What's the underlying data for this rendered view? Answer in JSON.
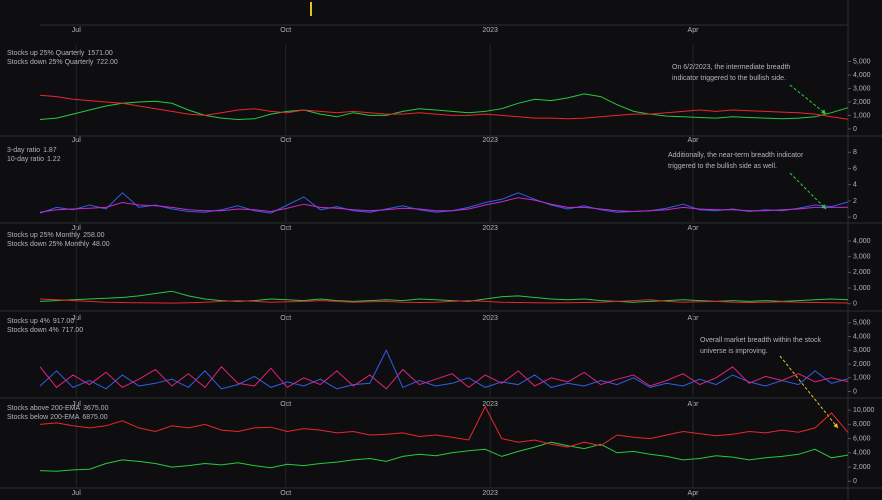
{
  "x_axis": {
    "xlim": [
      0,
      49
    ],
    "xticks": [
      {
        "value": 2.2,
        "label": "Jul"
      },
      {
        "value": 14.9,
        "label": "Oct"
      },
      {
        "value": 27.3,
        "label": "2023"
      },
      {
        "value": 39.6,
        "label": "Apr"
      }
    ]
  },
  "chart_data": [
    {
      "type": "line",
      "ylim": [
        -450,
        6000
      ],
      "yticks": [
        0,
        {
          "value": 1000,
          "label": "1,000"
        },
        {
          "value": 2000,
          "label": "2,000"
        },
        {
          "value": 3000,
          "label": "3,000"
        },
        {
          "value": 4000,
          "label": "4,000"
        },
        {
          "value": 5000,
          "label": "5,000"
        }
      ],
      "series": [
        {
          "name": "Stocks up 25% Quarterly",
          "color": "#27c93f",
          "last": {
            "value": 1571,
            "label": "1571.00"
          },
          "values": [
            700,
            800,
            1100,
            1400,
            1700,
            1900,
            2000,
            2050,
            1900,
            1400,
            1000,
            800,
            700,
            750,
            1100,
            1300,
            1400,
            1100,
            900,
            1200,
            1000,
            1000,
            1300,
            1500,
            1400,
            1300,
            1200,
            1300,
            1500,
            1900,
            2200,
            2100,
            2300,
            2600,
            2400,
            1800,
            1300,
            1100,
            950,
            900,
            850,
            800,
            900,
            850,
            800,
            750,
            800,
            900,
            1200,
            1571
          ]
        },
        {
          "name": "Stocks down 25% Quarterly",
          "color": "#e8262b",
          "last": {
            "value": 722,
            "label": "722.00"
          },
          "values": [
            2500,
            2400,
            2200,
            2100,
            2000,
            1900,
            1700,
            1500,
            1300,
            1100,
            1000,
            1200,
            1400,
            1500,
            1300,
            1200,
            1400,
            1300,
            1200,
            1300,
            1200,
            1100,
            1100,
            1200,
            1100,
            1000,
            1000,
            1100,
            1000,
            900,
            800,
            800,
            750,
            800,
            900,
            1000,
            1100,
            1100,
            1200,
            1300,
            1400,
            1300,
            1400,
            1350,
            1300,
            1250,
            1200,
            1100,
            900,
            722
          ]
        }
      ],
      "annotation": {
        "color": "#2ecc40",
        "lines": [
          "On 6/2/2023, the intermediate breadth",
          "indicator triggered to the bullish side."
        ]
      }
    },
    {
      "type": "line",
      "ylim": [
        -0.6,
        8.9
      ],
      "yticks": [
        0,
        2,
        4,
        6,
        8
      ],
      "series": [
        {
          "name": "3-day ratio",
          "color": "#2f5fe8",
          "last": {
            "value": 1.87,
            "label": "1.87"
          },
          "values": [
            0.5,
            1.2,
            0.9,
            1.5,
            1.0,
            3.0,
            1.2,
            1.5,
            1.0,
            0.7,
            0.6,
            0.9,
            1.4,
            0.8,
            0.5,
            1.5,
            2.5,
            0.9,
            1.3,
            0.8,
            0.6,
            1.0,
            1.4,
            0.9,
            0.6,
            0.8,
            1.2,
            1.8,
            2.2,
            3.0,
            2.2,
            1.5,
            1.0,
            1.4,
            0.9,
            0.6,
            0.7,
            0.8,
            1.1,
            1.6,
            0.9,
            0.8,
            1.0,
            0.7,
            0.9,
            0.8,
            1.1,
            1.5,
            1.3,
            1.87
          ]
        },
        {
          "name": "10-day ratio",
          "color": "#c42bd0",
          "last": {
            "value": 1.22,
            "label": "1.22"
          },
          "values": [
            0.6,
            0.9,
            1.0,
            1.1,
            1.2,
            1.8,
            1.5,
            1.4,
            1.2,
            0.9,
            0.8,
            0.8,
            1.0,
            0.9,
            0.7,
            1.1,
            1.6,
            1.2,
            1.1,
            0.9,
            0.8,
            0.9,
            1.1,
            1.0,
            0.8,
            0.8,
            1.0,
            1.5,
            1.9,
            2.4,
            2.1,
            1.6,
            1.2,
            1.2,
            1.0,
            0.8,
            0.7,
            0.8,
            0.9,
            1.2,
            1.0,
            0.9,
            0.9,
            0.8,
            0.8,
            0.9,
            1.0,
            1.2,
            1.2,
            1.22
          ]
        }
      ],
      "annotation": {
        "color": "#2ecc40",
        "lines": [
          "Additionally, the near-term breadth indicator",
          "triggered to the bullish side as well."
        ]
      }
    },
    {
      "type": "line",
      "ylim": [
        -400,
        4700
      ],
      "yticks": [
        0,
        {
          "value": 1000,
          "label": "1,000"
        },
        {
          "value": 2000,
          "label": "2,000"
        },
        {
          "value": 3000,
          "label": "3,000"
        },
        {
          "value": 4000,
          "label": "4,000"
        }
      ],
      "series": [
        {
          "name": "Stocks up 25% Monthly",
          "color": "#27c93f",
          "last": {
            "value": 258,
            "label": "258.00"
          },
          "values": [
            150,
            200,
            250,
            300,
            350,
            400,
            500,
            650,
            800,
            500,
            300,
            200,
            150,
            200,
            300,
            250,
            200,
            300,
            200,
            150,
            200,
            250,
            200,
            300,
            250,
            200,
            150,
            300,
            450,
            500,
            400,
            300,
            250,
            300,
            200,
            150,
            100,
            150,
            200,
            250,
            200,
            150,
            200,
            150,
            200,
            150,
            200,
            250,
            300,
            258
          ]
        },
        {
          "name": "Stocks down 25% Monthly",
          "color": "#e8262b",
          "last": {
            "value": 48,
            "label": "48.00"
          },
          "values": [
            300,
            250,
            200,
            150,
            100,
            80,
            60,
            50,
            40,
            60,
            100,
            150,
            200,
            150,
            100,
            120,
            150,
            200,
            150,
            100,
            120,
            150,
            100,
            80,
            100,
            150,
            200,
            150,
            100,
            80,
            60,
            50,
            60,
            80,
            100,
            150,
            200,
            250,
            150,
            100,
            120,
            150,
            100,
            80,
            100,
            120,
            100,
            80,
            60,
            48
          ]
        }
      ]
    },
    {
      "type": "line",
      "ylim": [
        -400,
        5500
      ],
      "yticks": [
        0,
        {
          "value": 1000,
          "label": "1,000"
        },
        {
          "value": 2000,
          "label": "2,000"
        },
        {
          "value": 3000,
          "label": "3,000"
        },
        {
          "value": 4000,
          "label": "4,000"
        },
        {
          "value": 5000,
          "label": "5,000"
        }
      ],
      "series": [
        {
          "name": "Stocks up 4%",
          "color": "#2f5fe8",
          "last": {
            "value": 917,
            "label": "917.00"
          },
          "values": [
            400,
            1500,
            300,
            800,
            200,
            1200,
            400,
            600,
            900,
            300,
            1500,
            200,
            500,
            1100,
            300,
            700,
            400,
            900,
            200,
            500,
            600,
            3000,
            300,
            800,
            400,
            600,
            1000,
            300,
            700,
            500,
            1200,
            300,
            600,
            400,
            800,
            500,
            1000,
            300,
            600,
            400,
            900,
            500,
            1200,
            700,
            400,
            800,
            500,
            1500,
            600,
            917
          ]
        },
        {
          "name": "Stocks down 4%",
          "color": "#e0227a",
          "last": {
            "value": 717,
            "label": "717.00"
          },
          "values": [
            1800,
            300,
            1200,
            500,
            1400,
            300,
            900,
            1600,
            400,
            1300,
            300,
            1800,
            600,
            400,
            1700,
            300,
            1000,
            500,
            1500,
            400,
            1200,
            200,
            1600,
            500,
            900,
            1300,
            300,
            1200,
            600,
            1500,
            400,
            1000,
            700,
            1400,
            500,
            900,
            1200,
            400,
            800,
            1300,
            500,
            1000,
            1800,
            600,
            1100,
            800,
            1300,
            700,
            1000,
            717
          ]
        }
      ],
      "annotation": {
        "color": "#e8262b",
        "lines": [
          "Overall market breadth within the stock",
          "universe is improving."
        ]
      }
    },
    {
      "type": "line",
      "ylim": [
        -800,
        11000
      ],
      "yticks": [
        0,
        {
          "value": 2000,
          "label": "2,000"
        },
        {
          "value": 4000,
          "label": "4,000"
        },
        {
          "value": 6000,
          "label": "6,000"
        },
        {
          "value": 8000,
          "label": "8,000"
        },
        {
          "value": 10000,
          "label": "10,000"
        }
      ],
      "series": [
        {
          "name": "Stocks above 200-EMA",
          "color": "#27c93f",
          "last": {
            "value": 3675,
            "label": "3675.00"
          },
          "values": [
            1500,
            1400,
            1600,
            1700,
            2500,
            3000,
            2800,
            2500,
            2000,
            2200,
            2500,
            2300,
            2600,
            2200,
            1900,
            2400,
            2200,
            2500,
            2700,
            3000,
            3200,
            2800,
            3500,
            3800,
            3600,
            4000,
            4300,
            4500,
            3500,
            4200,
            4800,
            5500,
            5000,
            4600,
            5200,
            4000,
            4200,
            3800,
            3500,
            3000,
            3200,
            3600,
            3400,
            3000,
            3300,
            3500,
            3800,
            4500,
            3300,
            3675
          ]
        },
        {
          "name": "Stocks below 200-EMA",
          "color": "#e8262b",
          "last": {
            "value": 6875,
            "label": "6875.00"
          },
          "values": [
            8000,
            8200,
            7800,
            7500,
            7800,
            8500,
            7500,
            7000,
            7800,
            7500,
            8000,
            7200,
            7000,
            7500,
            7600,
            7000,
            7400,
            7200,
            6800,
            7000,
            6500,
            6600,
            6800,
            6300,
            6500,
            6200,
            5800,
            10500,
            6000,
            5500,
            5800,
            5200,
            4800,
            5500,
            5000,
            6500,
            6200,
            6000,
            6500,
            7000,
            6700,
            6400,
            6600,
            7000,
            6800,
            7200,
            6900,
            7500,
            9600,
            6875
          ]
        }
      ]
    }
  ]
}
